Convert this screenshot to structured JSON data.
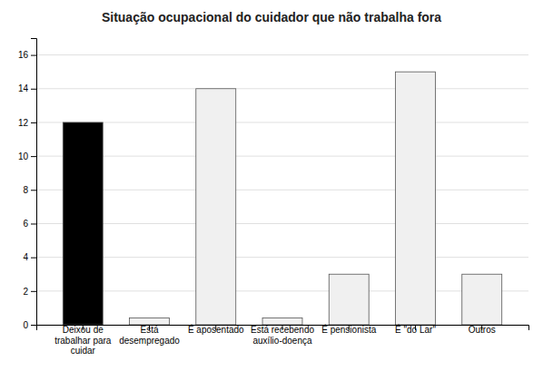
{
  "chart_data": {
    "type": "bar",
    "title": "Situação ocupacional do cuidador que não trabalha fora",
    "categories": [
      "Deixou de\ntrabalhar para\ncuidar",
      "Está\ndesempregado",
      "É aposentado",
      "Está recebendo\nauxílio-doença",
      "É pensionista",
      "É \"do Lar\"",
      "Outros"
    ],
    "values": [
      12,
      0.4,
      14,
      0.4,
      3,
      15,
      3
    ],
    "colors": [
      "#000000",
      "#f0f0f0",
      "#f0f0f0",
      "#f0f0f0",
      "#f0f0f0",
      "#f0f0f0",
      "#f0f0f0"
    ],
    "ylim": [
      0,
      17
    ],
    "yticks": [
      0,
      2,
      4,
      6,
      8,
      10,
      12,
      14,
      16
    ],
    "grid": true
  }
}
